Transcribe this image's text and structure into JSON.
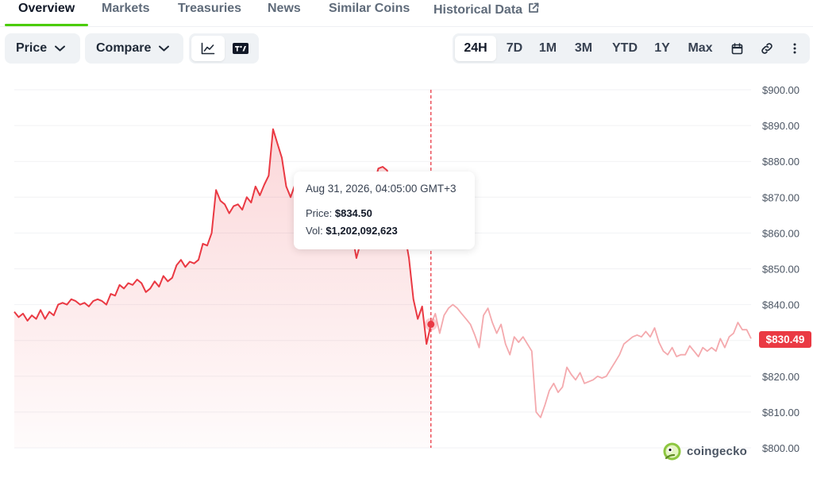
{
  "tabs": [
    {
      "label": "Overview",
      "active": true
    },
    {
      "label": "Markets"
    },
    {
      "label": "Treasuries"
    },
    {
      "label": "News"
    },
    {
      "label": "Similar Coins"
    },
    {
      "label": "Historical Data",
      "icon": "external-link-icon"
    }
  ],
  "toolbar": {
    "price_label": "Price",
    "compare_label": "Compare",
    "chart_modes": [
      {
        "icon": "line-chart-icon",
        "active": true
      },
      {
        "icon": "tradingview-icon",
        "active": false
      }
    ],
    "ranges": [
      "24H",
      "7D",
      "1M",
      "3M",
      "YTD",
      "1Y",
      "Max"
    ],
    "active_range": "24H",
    "extra_icons": [
      "calendar-icon",
      "link-icon",
      "more-vertical-icon"
    ]
  },
  "tooltip": {
    "date": "Aug 31, 2026, 04:05:00 GMT+3",
    "price_label": "Price:",
    "price_value": "$834.50",
    "vol_label": "Vol:",
    "vol_value": "$1,202,092,623"
  },
  "current_price": "$830.49",
  "watermark": "coingecko",
  "colors": {
    "line": "#ea3943",
    "line_faded": "#f4a9ad",
    "accent_green": "#4bcc00",
    "badge": "#ea3943"
  },
  "chart_data": {
    "type": "line",
    "ylim": [
      800,
      900
    ],
    "y_ticks": [
      "$900.00",
      "$890.00",
      "$880.00",
      "$870.00",
      "$860.00",
      "$850.00",
      "$840.00",
      "$830.00",
      "$820.00",
      "$810.00",
      "$800.00"
    ],
    "y_tick_values": [
      900,
      890,
      880,
      870,
      860,
      850,
      840,
      830,
      820,
      810,
      800
    ],
    "hovered_index": 95,
    "series": [
      {
        "values": [
          838.0,
          836.5,
          837.5,
          835.5,
          837.0,
          836.0,
          838.5,
          836.0,
          838.0,
          837.0,
          840.0,
          840.5,
          840.0,
          841.5,
          841.0,
          840.0,
          840.5,
          839.5,
          841.0,
          841.5,
          841.0,
          840.0,
          843.0,
          842.5,
          845.5,
          844.5,
          846.0,
          845.5,
          847.0,
          846.0,
          843.5,
          844.5,
          846.5,
          845.0,
          848.0,
          846.5,
          847.5,
          851.0,
          852.5,
          850.5,
          852.0,
          851.5,
          852.5,
          857.0,
          856.5,
          860.0,
          872.0,
          869.0,
          868.0,
          865.5,
          867.5,
          868.0,
          866.5,
          870.0,
          868.5,
          873.0,
          870.5,
          873.5,
          876.0,
          889.0,
          885.0,
          881.0,
          873.0,
          870.0,
          873.5,
          875.0,
          874.0,
          875.0,
          872.0,
          870.5,
          868.0,
          872.0,
          869.5,
          868.0,
          864.0,
          862.0,
          857.0,
          860.0,
          853.0,
          857.5,
          860.0,
          868.0,
          873.5,
          878.0,
          878.5,
          877.5,
          873.0,
          870.0,
          866.0,
          860.0,
          853.0,
          841.5,
          836.0,
          839.5,
          829.0,
          834.5,
          837.5,
          832.0,
          837.0,
          839.0,
          840.0,
          839.0,
          837.5,
          836.0,
          834.5,
          831.5,
          828.0,
          837.0,
          839.0,
          835.0,
          832.0,
          834.5,
          829.0,
          826.0,
          831.0,
          829.5,
          831.0,
          829.0,
          827.0,
          810.0,
          808.5,
          812.0,
          816.0,
          818.0,
          815.5,
          817.0,
          822.5,
          820.5,
          819.0,
          821.0,
          818.0,
          818.5,
          819.0,
          820.0,
          819.5,
          820.0,
          822.0,
          824.0,
          826.0,
          829.0,
          830.0,
          831.0,
          831.5,
          831.0,
          832.5,
          831.0,
          833.5,
          829.5,
          827.0,
          826.0,
          828.0,
          825.5,
          826.0,
          826.0,
          828.5,
          827.0,
          825.5,
          828.0,
          827.0,
          828.0,
          827.0,
          830.5,
          828.0,
          831.0,
          832.0,
          835.0,
          833.0,
          833.0,
          830.5
        ]
      }
    ]
  }
}
